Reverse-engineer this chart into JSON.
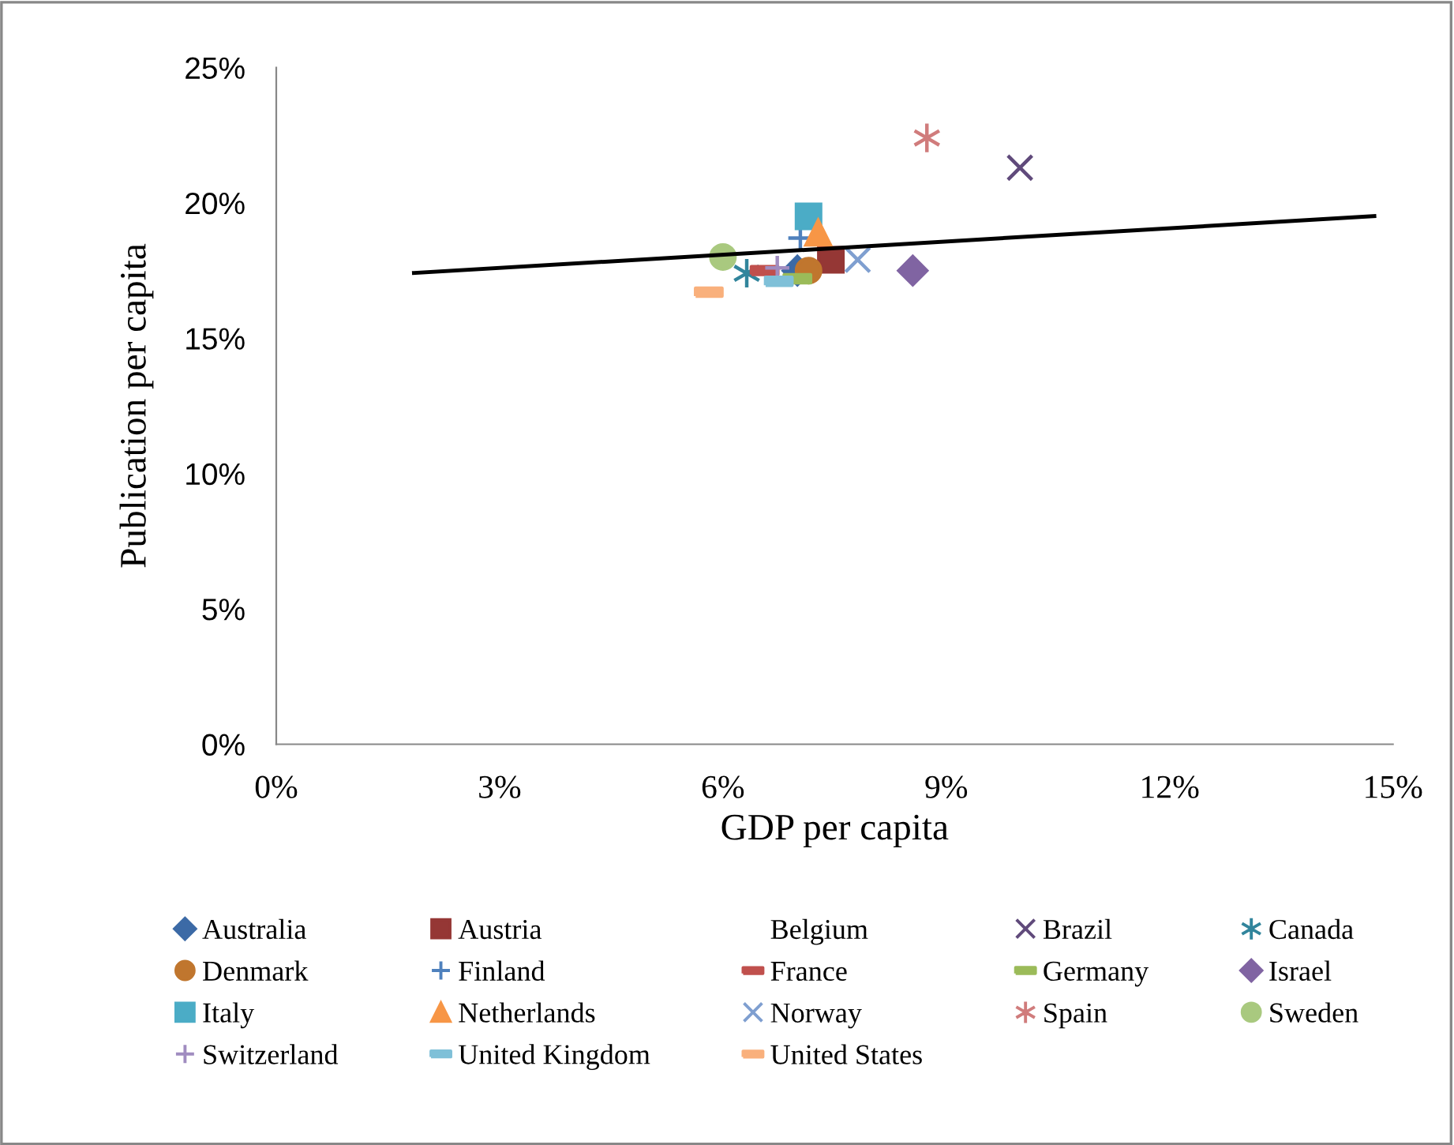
{
  "chart_data": {
    "type": "scatter",
    "xlabel": "GDP per capita",
    "ylabel": "Publication per capita",
    "xlim": [
      0,
      15
    ],
    "xticks": [
      {
        "value": 0,
        "label": "0%"
      },
      {
        "value": 3,
        "label": "3%"
      },
      {
        "value": 6,
        "label": "6%"
      },
      {
        "value": 9,
        "label": "9%"
      },
      {
        "value": 12,
        "label": "12%"
      },
      {
        "value": 15,
        "label": "15%"
      }
    ],
    "ylim": [
      0,
      25
    ],
    "yticks": [
      {
        "value": 0,
        "label": "0%"
      },
      {
        "value": 5,
        "label": "5%"
      },
      {
        "value": 10,
        "label": "10%"
      },
      {
        "value": 15,
        "label": "15%"
      },
      {
        "value": 20,
        "label": "20%"
      },
      {
        "value": 25,
        "label": "25%"
      }
    ],
    "grid": false,
    "legend": "bottom",
    "series": [
      {
        "name": "Australia",
        "color": "#3c6aa6",
        "marker": "diamond",
        "x": [
          7.0
        ],
        "values": [
          17.5
        ]
      },
      {
        "name": "Austria",
        "color": "#953735",
        "marker": "square",
        "x": [
          7.45
        ],
        "values": [
          17.9
        ]
      },
      {
        "name": "Belgium",
        "marker": "none",
        "x": [
          null
        ],
        "values": [
          null
        ]
      },
      {
        "name": "Brazil",
        "color": "#604a7b",
        "marker": "x",
        "x": [
          9.99
        ],
        "values": [
          21.3
        ]
      },
      {
        "name": "Canada",
        "color": "#31859c",
        "marker": "cross",
        "x": [
          6.32
        ],
        "values": [
          17.4
        ]
      },
      {
        "name": "Denmark",
        "color": "#c0762e",
        "marker": "circle",
        "x": [
          7.15
        ],
        "values": [
          17.5
        ]
      },
      {
        "name": "Finland",
        "color": "#4f81bd",
        "marker": "plus",
        "x": [
          7.04
        ],
        "values": [
          18.7
        ]
      },
      {
        "name": "France",
        "color": "#c0504d",
        "x": [
          6.56
        ],
        "values": [
          17.5
        ]
      },
      {
        "name": "Germany",
        "color": "#9bbb59",
        "x": [
          7.0
        ],
        "values": [
          17.2
        ]
      },
      {
        "name": "Israel",
        "color": "#8064a2",
        "marker": "diamond",
        "x": [
          8.55
        ],
        "values": [
          17.5
        ]
      },
      {
        "name": "Italy",
        "color": "#4bacc6",
        "marker": "square",
        "x": [
          7.15
        ],
        "values": [
          19.5
        ]
      },
      {
        "name": "Netherlands",
        "color": "#f79646",
        "marker": "triangle",
        "x": [
          7.28
        ],
        "values": [
          18.9
        ]
      },
      {
        "name": "Norway",
        "color": "#7f9fd0",
        "marker": "x",
        "x": [
          7.81
        ],
        "values": [
          17.9
        ]
      },
      {
        "name": "Spain",
        "color": "#d07c7c",
        "marker": "cross",
        "x": [
          8.74
        ],
        "values": [
          22.4
        ]
      },
      {
        "name": "Sweden",
        "color": "#a9c97f",
        "marker": "circle",
        "x": [
          6.0
        ],
        "values": [
          18.0
        ]
      },
      {
        "name": "Switzerland",
        "color": "#a08cc0",
        "marker": "plus",
        "x": [
          6.73
        ],
        "values": [
          17.6
        ]
      },
      {
        "name": "United Kingdom",
        "color": "#7fc0d8",
        "x": [
          6.75
        ],
        "values": [
          17.1
        ]
      },
      {
        "name": "United States",
        "color": "#f9b07c",
        "x": [
          5.81
        ],
        "values": [
          16.7
        ]
      },
      {
        "type": "line",
        "color": "#000000",
        "marker": "none",
        "x": [
          1.85,
          14.75
        ],
        "values": [
          17.41,
          19.51
        ]
      }
    ]
  }
}
